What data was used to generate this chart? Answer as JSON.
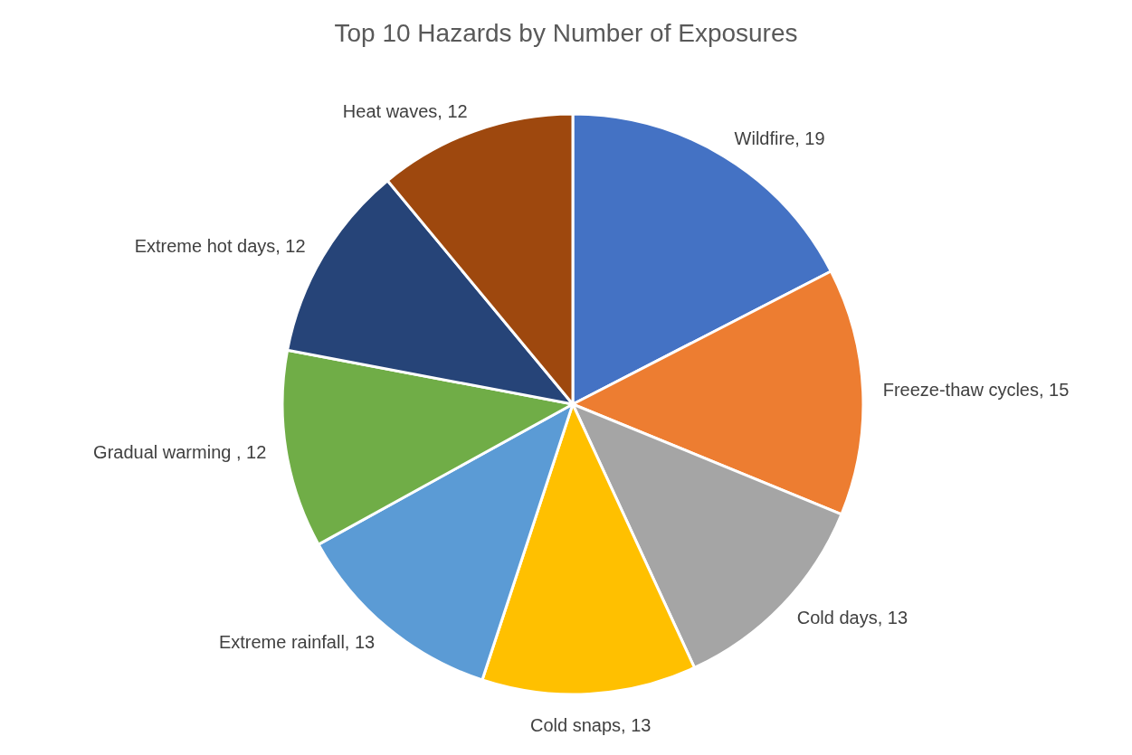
{
  "chart_data": {
    "type": "pie",
    "title": "Top 10 Hazards by Number of Exposures",
    "categories": [
      "Wildfire, 19",
      "Freeze-thaw cycles, 15",
      "Cold days, 13",
      "Cold snaps, 13",
      "Extreme rainfall, 13",
      "Gradual warming , 12",
      "Extreme hot days, 12",
      "Heat waves, 12"
    ],
    "values": [
      19,
      15,
      13,
      13,
      13,
      12,
      12,
      12
    ],
    "colors": [
      "#4472c4",
      "#ed7d31",
      "#a5a5a5",
      "#ffc000",
      "#5b9bd5",
      "#70ad47",
      "#264478",
      "#9e480e"
    ],
    "legend": false
  }
}
